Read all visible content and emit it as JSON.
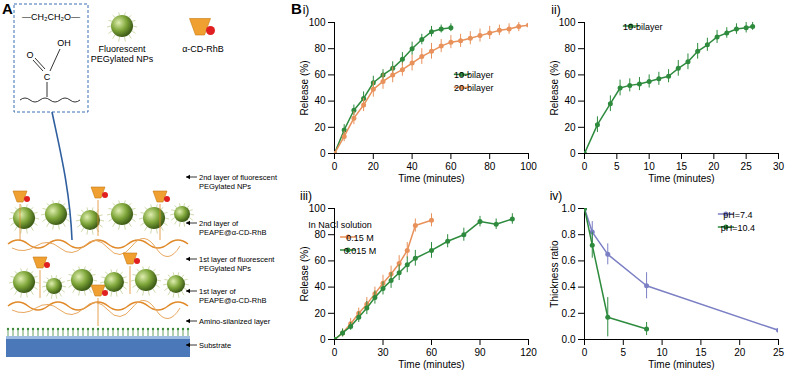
{
  "diagram": {
    "panel_label": "A",
    "structure": {
      "chain": "—CH₂CH₂O—",
      "carbonyl_oxygen": "O",
      "carbon": "C",
      "hydroxyl": "OH"
    },
    "legend": [
      {
        "label": [
          "Fluorescent",
          "PEGylated NPs"
        ]
      },
      {
        "label": [
          "α-CD-RhB"
        ]
      }
    ],
    "layer_labels": [
      [
        "2nd layer of fluorescent",
        "PEGylated NPs"
      ],
      [
        "2nd layer of",
        "PEAPE@α-CD-RhB"
      ],
      [
        "1st layer of fluorescent",
        "PEGylated NPs"
      ],
      [
        "1st layer of",
        "PEAPE@α-CD-RhB"
      ],
      [
        "Amino-silanized layer"
      ],
      [
        "Substrate"
      ]
    ]
  },
  "charts_panel_label": "B",
  "chart_data": [
    {
      "type": "line",
      "title": "i)",
      "xlabel": "Time (minutes)",
      "ylabel": "Release (%)",
      "xlim": [
        0,
        100
      ],
      "xticks": [
        0,
        20,
        40,
        60,
        80,
        100
      ],
      "ylim": [
        0,
        100
      ],
      "yticks": [
        0,
        20,
        40,
        60,
        80,
        100
      ],
      "legend": "center right",
      "marker": "circle",
      "line_style": "solid",
      "series": [
        {
          "name": "10-bilayer",
          "color": "#2e8b3e",
          "x": [
            0,
            5,
            10,
            15,
            20,
            25,
            30,
            35,
            40,
            45,
            50,
            55,
            60
          ],
          "values": [
            0,
            18,
            33,
            42,
            54,
            60,
            65,
            72,
            80,
            87,
            93,
            95,
            96
          ],
          "errors": [
            0,
            4,
            4,
            5,
            5,
            4,
            5,
            5,
            5,
            4,
            4,
            3,
            3
          ]
        },
        {
          "name": "20-bilayer",
          "color": "#e8915a",
          "x": [
            0,
            5,
            10,
            15,
            20,
            25,
            30,
            35,
            40,
            45,
            50,
            55,
            60,
            65,
            70,
            75,
            80,
            85,
            90,
            95,
            100
          ],
          "values": [
            0,
            13,
            27,
            37,
            49,
            55,
            60,
            64,
            69,
            74,
            78,
            82,
            85,
            86,
            88,
            90,
            92,
            94,
            95,
            97,
            98
          ],
          "errors": [
            0,
            4,
            5,
            5,
            6,
            6,
            6,
            5,
            6,
            6,
            6,
            5,
            5,
            5,
            5,
            5,
            5,
            4,
            4,
            4,
            4
          ]
        }
      ]
    },
    {
      "type": "line",
      "title": "ii)",
      "xlabel": "Time (minutes)",
      "ylabel": "Release (%)",
      "xlim": [
        0,
        30
      ],
      "xticks": [
        0,
        5,
        10,
        15,
        20,
        25,
        30
      ],
      "ylim": [
        0,
        100
      ],
      "yticks": [
        0,
        20,
        40,
        60,
        80,
        100
      ],
      "legend": "upper center",
      "marker": "circle",
      "line_style": "solid",
      "series": [
        {
          "name": "10-bilayer",
          "color": "#2e8b3e",
          "x": [
            0,
            2,
            4,
            5.5,
            7,
            8.5,
            10,
            11.5,
            13,
            14.5,
            16,
            17.5,
            19,
            20.5,
            22,
            23.5,
            25,
            26
          ],
          "values": [
            0,
            22,
            38,
            50,
            52,
            53,
            55,
            57,
            59,
            65,
            70,
            78,
            83,
            89,
            92,
            95,
            96,
            97
          ],
          "errors": [
            0,
            6,
            6,
            6,
            5,
            5,
            5,
            5,
            5,
            6,
            6,
            6,
            5,
            5,
            4,
            4,
            4,
            3
          ]
        }
      ]
    },
    {
      "type": "line",
      "title": "iii)",
      "xlabel": "Time (minutes)",
      "ylabel": "Release (%)",
      "xlim": [
        0,
        120
      ],
      "xticks": [
        0,
        30,
        60,
        90,
        120
      ],
      "ylim": [
        0,
        100
      ],
      "yticks": [
        0,
        20,
        40,
        60,
        80,
        100
      ],
      "legend": "upper left",
      "legend_title": "In NaCl solution",
      "marker": "circle",
      "line_style": "solid",
      "series": [
        {
          "name": "0.15 M",
          "color": "#e8915a",
          "x": [
            0,
            5,
            10,
            15,
            20,
            25,
            30,
            35,
            40,
            45,
            50,
            60
          ],
          "values": [
            0,
            5,
            12,
            20,
            27,
            35,
            43,
            50,
            58,
            68,
            87,
            91
          ],
          "errors": [
            0,
            3,
            4,
            4,
            5,
            5,
            6,
            6,
            6,
            6,
            5,
            5
          ]
        },
        {
          "name": "0.015 M",
          "color": "#2e8b3e",
          "x": [
            0,
            5,
            10,
            15,
            20,
            25,
            30,
            35,
            40,
            45,
            50,
            60,
            70,
            80,
            90,
            100,
            110
          ],
          "values": [
            0,
            5,
            10,
            17,
            24,
            32,
            39,
            45,
            51,
            57,
            62,
            68,
            75,
            80,
            90,
            88,
            92
          ],
          "errors": [
            0,
            3,
            3,
            4,
            5,
            5,
            5,
            6,
            6,
            6,
            6,
            6,
            5,
            5,
            4,
            4,
            4
          ]
        }
      ]
    },
    {
      "type": "line",
      "title": "iv)",
      "xlabel": "Time (minutes)",
      "ylabel": "Thickness ratio",
      "xlim": [
        0,
        25
      ],
      "xticks": [
        0,
        5,
        10,
        15,
        20,
        25
      ],
      "ylim": [
        0,
        1
      ],
      "yticks": [
        {
          "value": 0,
          "label": "0.0"
        },
        0.2,
        0.4,
        0.6,
        0.8,
        {
          "value": 1,
          "label": "1.0"
        }
      ],
      "legend": "upper right",
      "marker": "circle",
      "line_style": "solid",
      "series": [
        {
          "name": "pH=7.4",
          "color": "#7b7fc4",
          "x": [
            0,
            1,
            3,
            8,
            25
          ],
          "values": [
            1.0,
            0.82,
            0.65,
            0.41,
            0.07
          ],
          "errors": [
            0,
            0.08,
            0.08,
            0.1,
            0.07
          ]
        },
        {
          "name": "pH=10.4",
          "color": "#2e8b3e",
          "x": [
            0,
            1,
            3,
            8
          ],
          "values": [
            1.0,
            0.72,
            0.17,
            0.08
          ],
          "errors": [
            0,
            0.1,
            0.15,
            0.05
          ]
        }
      ]
    }
  ]
}
